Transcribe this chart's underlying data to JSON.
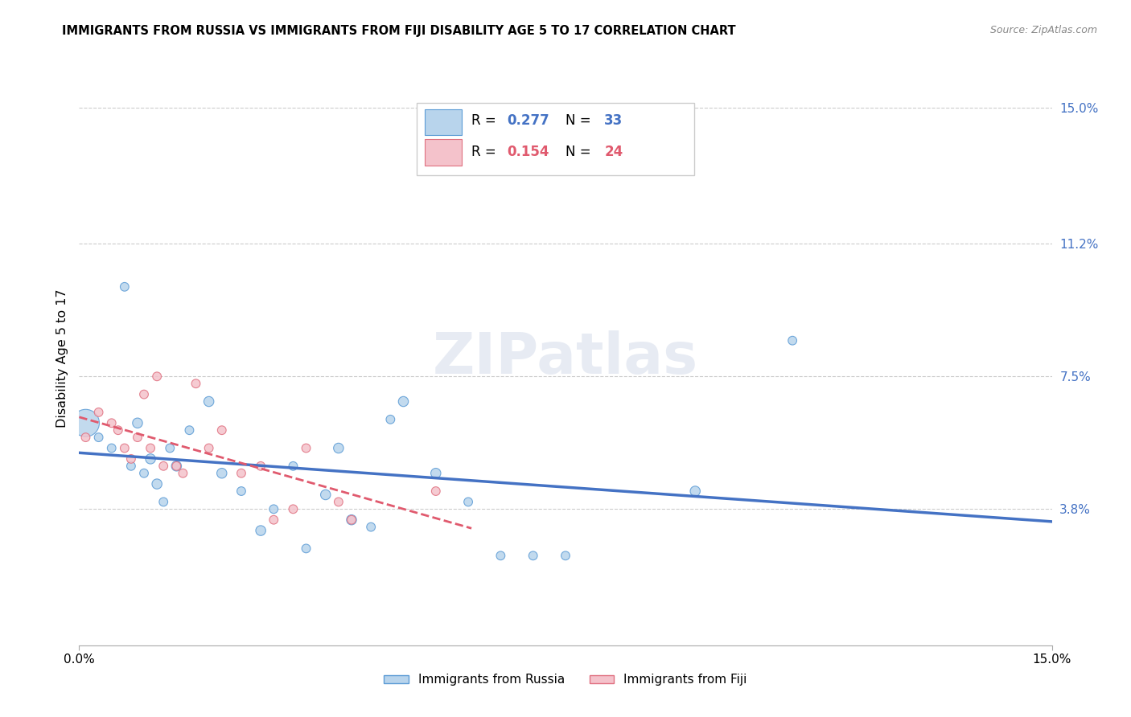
{
  "title": "IMMIGRANTS FROM RUSSIA VS IMMIGRANTS FROM FIJI DISABILITY AGE 5 TO 17 CORRELATION CHART",
  "source": "Source: ZipAtlas.com",
  "ylabel": "Disability Age 5 to 17",
  "russia_R": "0.277",
  "russia_N": "33",
  "fiji_R": "0.154",
  "fiji_N": "24",
  "russia_color": "#b8d4ec",
  "russia_edge_color": "#5b9bd5",
  "russia_line_color": "#4472c4",
  "fiji_color": "#f4c2cb",
  "fiji_edge_color": "#e07080",
  "fiji_line_color": "#e05a6e",
  "axis_label_color": "#4472c4",
  "x_min": 0.0,
  "x_max": 0.15,
  "y_min": 0.0,
  "y_max": 0.16,
  "ytick_vals": [
    0.038,
    0.075,
    0.112,
    0.15
  ],
  "ytick_labels": [
    "3.8%",
    "7.5%",
    "11.2%",
    "15.0%"
  ],
  "xtick_vals": [
    0.0,
    0.15
  ],
  "xtick_labels": [
    "0.0%",
    "15.0%"
  ],
  "russia_x": [
    0.001,
    0.003,
    0.005,
    0.007,
    0.008,
    0.009,
    0.01,
    0.011,
    0.012,
    0.013,
    0.014,
    0.015,
    0.017,
    0.02,
    0.022,
    0.025,
    0.028,
    0.03,
    0.033,
    0.035,
    0.038,
    0.04,
    0.042,
    0.045,
    0.048,
    0.05,
    0.055,
    0.06,
    0.065,
    0.07,
    0.075,
    0.095,
    0.11
  ],
  "russia_y": [
    0.062,
    0.058,
    0.055,
    0.1,
    0.05,
    0.062,
    0.048,
    0.052,
    0.045,
    0.04,
    0.055,
    0.05,
    0.06,
    0.068,
    0.048,
    0.043,
    0.032,
    0.038,
    0.05,
    0.027,
    0.042,
    0.055,
    0.035,
    0.033,
    0.063,
    0.068,
    0.048,
    0.04,
    0.025,
    0.025,
    0.025,
    0.043,
    0.085
  ],
  "russia_size": [
    600,
    60,
    60,
    60,
    60,
    80,
    60,
    80,
    80,
    60,
    60,
    80,
    60,
    80,
    80,
    60,
    80,
    60,
    60,
    60,
    80,
    80,
    80,
    60,
    60,
    80,
    80,
    60,
    60,
    60,
    60,
    80,
    60
  ],
  "fiji_x": [
    0.001,
    0.003,
    0.005,
    0.006,
    0.007,
    0.008,
    0.009,
    0.01,
    0.011,
    0.012,
    0.013,
    0.015,
    0.016,
    0.018,
    0.02,
    0.022,
    0.025,
    0.028,
    0.03,
    0.033,
    0.035,
    0.04,
    0.042,
    0.055
  ],
  "fiji_y": [
    0.058,
    0.065,
    0.062,
    0.06,
    0.055,
    0.052,
    0.058,
    0.07,
    0.055,
    0.075,
    0.05,
    0.05,
    0.048,
    0.073,
    0.055,
    0.06,
    0.048,
    0.05,
    0.035,
    0.038,
    0.055,
    0.04,
    0.035,
    0.043
  ],
  "fiji_size": [
    60,
    60,
    60,
    60,
    60,
    60,
    60,
    60,
    60,
    60,
    60,
    60,
    60,
    60,
    60,
    60,
    60,
    60,
    60,
    60,
    60,
    60,
    60,
    60
  ]
}
